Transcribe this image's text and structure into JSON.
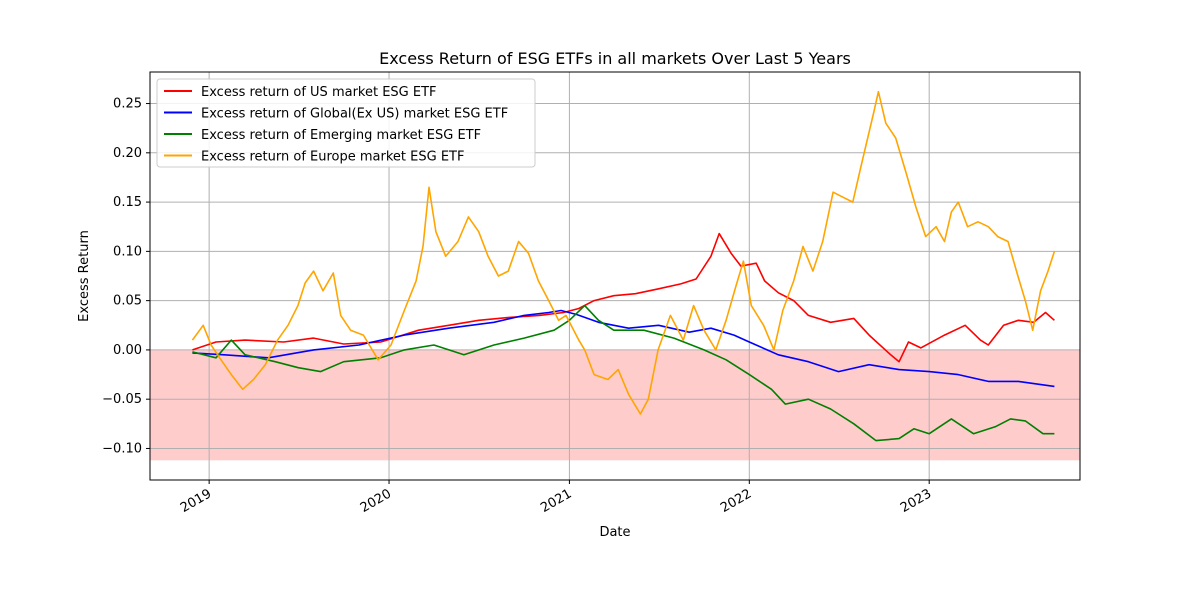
{
  "chart_data": {
    "type": "line",
    "title": "Excess Return of ESG ETFs in all markets Over Last 5 Years",
    "xlabel": "Date",
    "ylabel": "Excess Return",
    "x_range": [
      "2018-09-03",
      "2023-11-03"
    ],
    "ylim": [
      -0.132,
      0.282
    ],
    "x_ticks": [
      {
        "date": "2019-01-01",
        "label": "2019"
      },
      {
        "date": "2020-01-01",
        "label": "2020"
      },
      {
        "date": "2021-01-01",
        "label": "2021"
      },
      {
        "date": "2022-01-01",
        "label": "2022"
      },
      {
        "date": "2023-01-01",
        "label": "2023"
      }
    ],
    "y_ticks": [
      {
        "value": 0.25,
        "label": "0.25"
      },
      {
        "value": 0.2,
        "label": "0.20"
      },
      {
        "value": 0.15,
        "label": "0.15"
      },
      {
        "value": 0.1,
        "label": "0.10"
      },
      {
        "value": 0.05,
        "label": "0.05"
      },
      {
        "value": 0.0,
        "label": "0.00"
      },
      {
        "value": -0.05,
        "label": "−0.05"
      },
      {
        "value": -0.1,
        "label": "−0.10"
      }
    ],
    "grid": true,
    "legend_position": "top-left",
    "negative_region": {
      "from": -0.112,
      "to": 0.0,
      "color": "#ffcccc"
    },
    "series": [
      {
        "name": "Excess return of US market ESG ETF",
        "color": "#ff0000",
        "points": [
          [
            "2018-11-28",
            0.0
          ],
          [
            "2019-01-15",
            0.008
          ],
          [
            "2019-03-15",
            0.01
          ],
          [
            "2019-06-01",
            0.008
          ],
          [
            "2019-08-01",
            0.012
          ],
          [
            "2019-10-01",
            0.006
          ],
          [
            "2019-12-15",
            0.008
          ],
          [
            "2020-03-01",
            0.02
          ],
          [
            "2020-05-01",
            0.025
          ],
          [
            "2020-07-01",
            0.03
          ],
          [
            "2020-09-01",
            0.033
          ],
          [
            "2020-11-01",
            0.035
          ],
          [
            "2020-12-20",
            0.038
          ],
          [
            "2021-01-20",
            0.042
          ],
          [
            "2021-02-20",
            0.05
          ],
          [
            "2021-04-01",
            0.055
          ],
          [
            "2021-05-15",
            0.057
          ],
          [
            "2021-07-01",
            0.062
          ],
          [
            "2021-08-15",
            0.067
          ],
          [
            "2021-09-15",
            0.072
          ],
          [
            "2021-10-15",
            0.095
          ],
          [
            "2021-11-01",
            0.118
          ],
          [
            "2021-11-25",
            0.098
          ],
          [
            "2021-12-15",
            0.085
          ],
          [
            "2022-01-15",
            0.088
          ],
          [
            "2022-02-01",
            0.07
          ],
          [
            "2022-03-01",
            0.058
          ],
          [
            "2022-04-01",
            0.05
          ],
          [
            "2022-05-01",
            0.035
          ],
          [
            "2022-06-15",
            0.028
          ],
          [
            "2022-08-01",
            0.032
          ],
          [
            "2022-09-01",
            0.015
          ],
          [
            "2022-10-15",
            -0.005
          ],
          [
            "2022-11-01",
            -0.012
          ],
          [
            "2022-11-20",
            0.008
          ],
          [
            "2022-12-15",
            0.002
          ],
          [
            "2023-02-01",
            0.015
          ],
          [
            "2023-03-15",
            0.025
          ],
          [
            "2023-04-15",
            0.01
          ],
          [
            "2023-05-01",
            0.005
          ],
          [
            "2023-06-01",
            0.025
          ],
          [
            "2023-07-01",
            0.03
          ],
          [
            "2023-08-01",
            0.028
          ],
          [
            "2023-08-25",
            0.038
          ],
          [
            "2023-09-12",
            0.03
          ]
        ]
      },
      {
        "name": "Excess return of Global(Ex US) market ESG ETF",
        "color": "#0000ff",
        "points": [
          [
            "2018-11-28",
            -0.003
          ],
          [
            "2019-02-01",
            -0.005
          ],
          [
            "2019-05-01",
            -0.008
          ],
          [
            "2019-08-01",
            0.0
          ],
          [
            "2019-11-01",
            0.005
          ],
          [
            "2020-02-01",
            0.015
          ],
          [
            "2020-05-01",
            0.022
          ],
          [
            "2020-08-01",
            0.028
          ],
          [
            "2020-10-01",
            0.035
          ],
          [
            "2020-11-20",
            0.038
          ],
          [
            "2020-12-15",
            0.04
          ],
          [
            "2021-01-15",
            0.036
          ],
          [
            "2021-03-01",
            0.028
          ],
          [
            "2021-05-01",
            0.022
          ],
          [
            "2021-07-01",
            0.025
          ],
          [
            "2021-09-01",
            0.018
          ],
          [
            "2021-10-15",
            0.022
          ],
          [
            "2021-12-01",
            0.015
          ],
          [
            "2022-01-01",
            0.008
          ],
          [
            "2022-03-01",
            -0.005
          ],
          [
            "2022-05-01",
            -0.012
          ],
          [
            "2022-07-01",
            -0.022
          ],
          [
            "2022-09-01",
            -0.015
          ],
          [
            "2022-11-01",
            -0.02
          ],
          [
            "2023-01-01",
            -0.022
          ],
          [
            "2023-03-01",
            -0.025
          ],
          [
            "2023-05-01",
            -0.032
          ],
          [
            "2023-07-01",
            -0.032
          ],
          [
            "2023-09-12",
            -0.037
          ]
        ]
      },
      {
        "name": "Excess return of Emerging market ESG ETF",
        "color": "#008000",
        "points": [
          [
            "2018-11-28",
            -0.002
          ],
          [
            "2019-01-15",
            -0.008
          ],
          [
            "2019-02-15",
            0.01
          ],
          [
            "2019-03-15",
            -0.005
          ],
          [
            "2019-05-15",
            -0.012
          ],
          [
            "2019-07-01",
            -0.018
          ],
          [
            "2019-08-15",
            -0.022
          ],
          [
            "2019-10-01",
            -0.012
          ],
          [
            "2019-12-15",
            -0.008
          ],
          [
            "2020-02-01",
            0.0
          ],
          [
            "2020-04-01",
            0.005
          ],
          [
            "2020-06-01",
            -0.005
          ],
          [
            "2020-08-01",
            0.005
          ],
          [
            "2020-10-01",
            0.012
          ],
          [
            "2020-12-01",
            0.02
          ],
          [
            "2021-01-01",
            0.03
          ],
          [
            "2021-02-01",
            0.045
          ],
          [
            "2021-03-01",
            0.03
          ],
          [
            "2021-04-01",
            0.02
          ],
          [
            "2021-06-01",
            0.02
          ],
          [
            "2021-08-01",
            0.012
          ],
          [
            "2021-10-01",
            0.0
          ],
          [
            "2021-11-15",
            -0.01
          ],
          [
            "2022-01-01",
            -0.025
          ],
          [
            "2022-02-15",
            -0.04
          ],
          [
            "2022-03-15",
            -0.055
          ],
          [
            "2022-05-01",
            -0.05
          ],
          [
            "2022-06-15",
            -0.06
          ],
          [
            "2022-08-01",
            -0.075
          ],
          [
            "2022-09-15",
            -0.092
          ],
          [
            "2022-11-01",
            -0.09
          ],
          [
            "2022-12-01",
            -0.08
          ],
          [
            "2023-01-01",
            -0.085
          ],
          [
            "2023-02-15",
            -0.07
          ],
          [
            "2023-04-01",
            -0.085
          ],
          [
            "2023-05-15",
            -0.078
          ],
          [
            "2023-06-15",
            -0.07
          ],
          [
            "2023-07-15",
            -0.072
          ],
          [
            "2023-08-20",
            -0.085
          ],
          [
            "2023-09-12",
            -0.085
          ]
        ]
      },
      {
        "name": "Excess return of Europe market ESG ETF",
        "color": "#ffa500",
        "points": [
          [
            "2018-11-28",
            0.01
          ],
          [
            "2018-12-20",
            0.025
          ],
          [
            "2019-01-05",
            0.005
          ],
          [
            "2019-01-25",
            -0.01
          ],
          [
            "2019-02-15",
            -0.025
          ],
          [
            "2019-03-10",
            -0.04
          ],
          [
            "2019-04-01",
            -0.03
          ],
          [
            "2019-04-25",
            -0.015
          ],
          [
            "2019-05-20",
            0.01
          ],
          [
            "2019-06-10",
            0.025
          ],
          [
            "2019-06-30",
            0.045
          ],
          [
            "2019-07-15",
            0.068
          ],
          [
            "2019-08-01",
            0.08
          ],
          [
            "2019-08-20",
            0.06
          ],
          [
            "2019-09-10",
            0.078
          ],
          [
            "2019-09-25",
            0.035
          ],
          [
            "2019-10-15",
            0.02
          ],
          [
            "2019-11-10",
            0.015
          ],
          [
            "2019-12-10",
            -0.01
          ],
          [
            "2020-01-05",
            0.005
          ],
          [
            "2020-02-01",
            0.04
          ],
          [
            "2020-02-25",
            0.07
          ],
          [
            "2020-03-10",
            0.105
          ],
          [
            "2020-03-22",
            0.165
          ],
          [
            "2020-04-05",
            0.12
          ],
          [
            "2020-04-25",
            0.095
          ],
          [
            "2020-05-20",
            0.11
          ],
          [
            "2020-06-10",
            0.135
          ],
          [
            "2020-07-01",
            0.12
          ],
          [
            "2020-07-20",
            0.095
          ],
          [
            "2020-08-10",
            0.075
          ],
          [
            "2020-08-30",
            0.08
          ],
          [
            "2020-09-20",
            0.11
          ],
          [
            "2020-10-10",
            0.098
          ],
          [
            "2020-10-30",
            0.07
          ],
          [
            "2020-11-20",
            0.05
          ],
          [
            "2020-12-10",
            0.03
          ],
          [
            "2020-12-25",
            0.035
          ],
          [
            "2021-01-20",
            0.01
          ],
          [
            "2021-02-01",
            0.0
          ],
          [
            "2021-02-20",
            -0.025
          ],
          [
            "2021-03-20",
            -0.03
          ],
          [
            "2021-04-10",
            -0.02
          ],
          [
            "2021-05-01",
            -0.045
          ],
          [
            "2021-05-25",
            -0.065
          ],
          [
            "2021-06-10",
            -0.05
          ],
          [
            "2021-06-30",
            0.0
          ],
          [
            "2021-07-25",
            0.035
          ],
          [
            "2021-08-20",
            0.01
          ],
          [
            "2021-09-10",
            0.045
          ],
          [
            "2021-10-01",
            0.02
          ],
          [
            "2021-10-25",
            0.0
          ],
          [
            "2021-11-15",
            0.03
          ],
          [
            "2021-12-05",
            0.065
          ],
          [
            "2021-12-20",
            0.09
          ],
          [
            "2022-01-05",
            0.045
          ],
          [
            "2022-01-30",
            0.025
          ],
          [
            "2022-02-20",
            0.0
          ],
          [
            "2022-03-10",
            0.04
          ],
          [
            "2022-04-01",
            0.07
          ],
          [
            "2022-04-20",
            0.105
          ],
          [
            "2022-05-10",
            0.08
          ],
          [
            "2022-05-30",
            0.11
          ],
          [
            "2022-06-20",
            0.16
          ],
          [
            "2022-07-10",
            0.155
          ],
          [
            "2022-07-30",
            0.15
          ],
          [
            "2022-08-15",
            0.185
          ],
          [
            "2022-09-10",
            0.24
          ],
          [
            "2022-09-20",
            0.262
          ],
          [
            "2022-10-05",
            0.23
          ],
          [
            "2022-10-25",
            0.215
          ],
          [
            "2022-11-15",
            0.18
          ],
          [
            "2022-12-05",
            0.145
          ],
          [
            "2022-12-25",
            0.115
          ],
          [
            "2023-01-15",
            0.125
          ],
          [
            "2023-02-01",
            0.11
          ],
          [
            "2023-02-15",
            0.14
          ],
          [
            "2023-03-01",
            0.15
          ],
          [
            "2023-03-20",
            0.125
          ],
          [
            "2023-04-10",
            0.13
          ],
          [
            "2023-05-01",
            0.125
          ],
          [
            "2023-05-20",
            0.115
          ],
          [
            "2023-06-10",
            0.11
          ],
          [
            "2023-06-30",
            0.075
          ],
          [
            "2023-07-15",
            0.05
          ],
          [
            "2023-07-30",
            0.02
          ],
          [
            "2023-08-15",
            0.06
          ],
          [
            "2023-08-30",
            0.08
          ],
          [
            "2023-09-12",
            0.1
          ]
        ]
      }
    ]
  }
}
